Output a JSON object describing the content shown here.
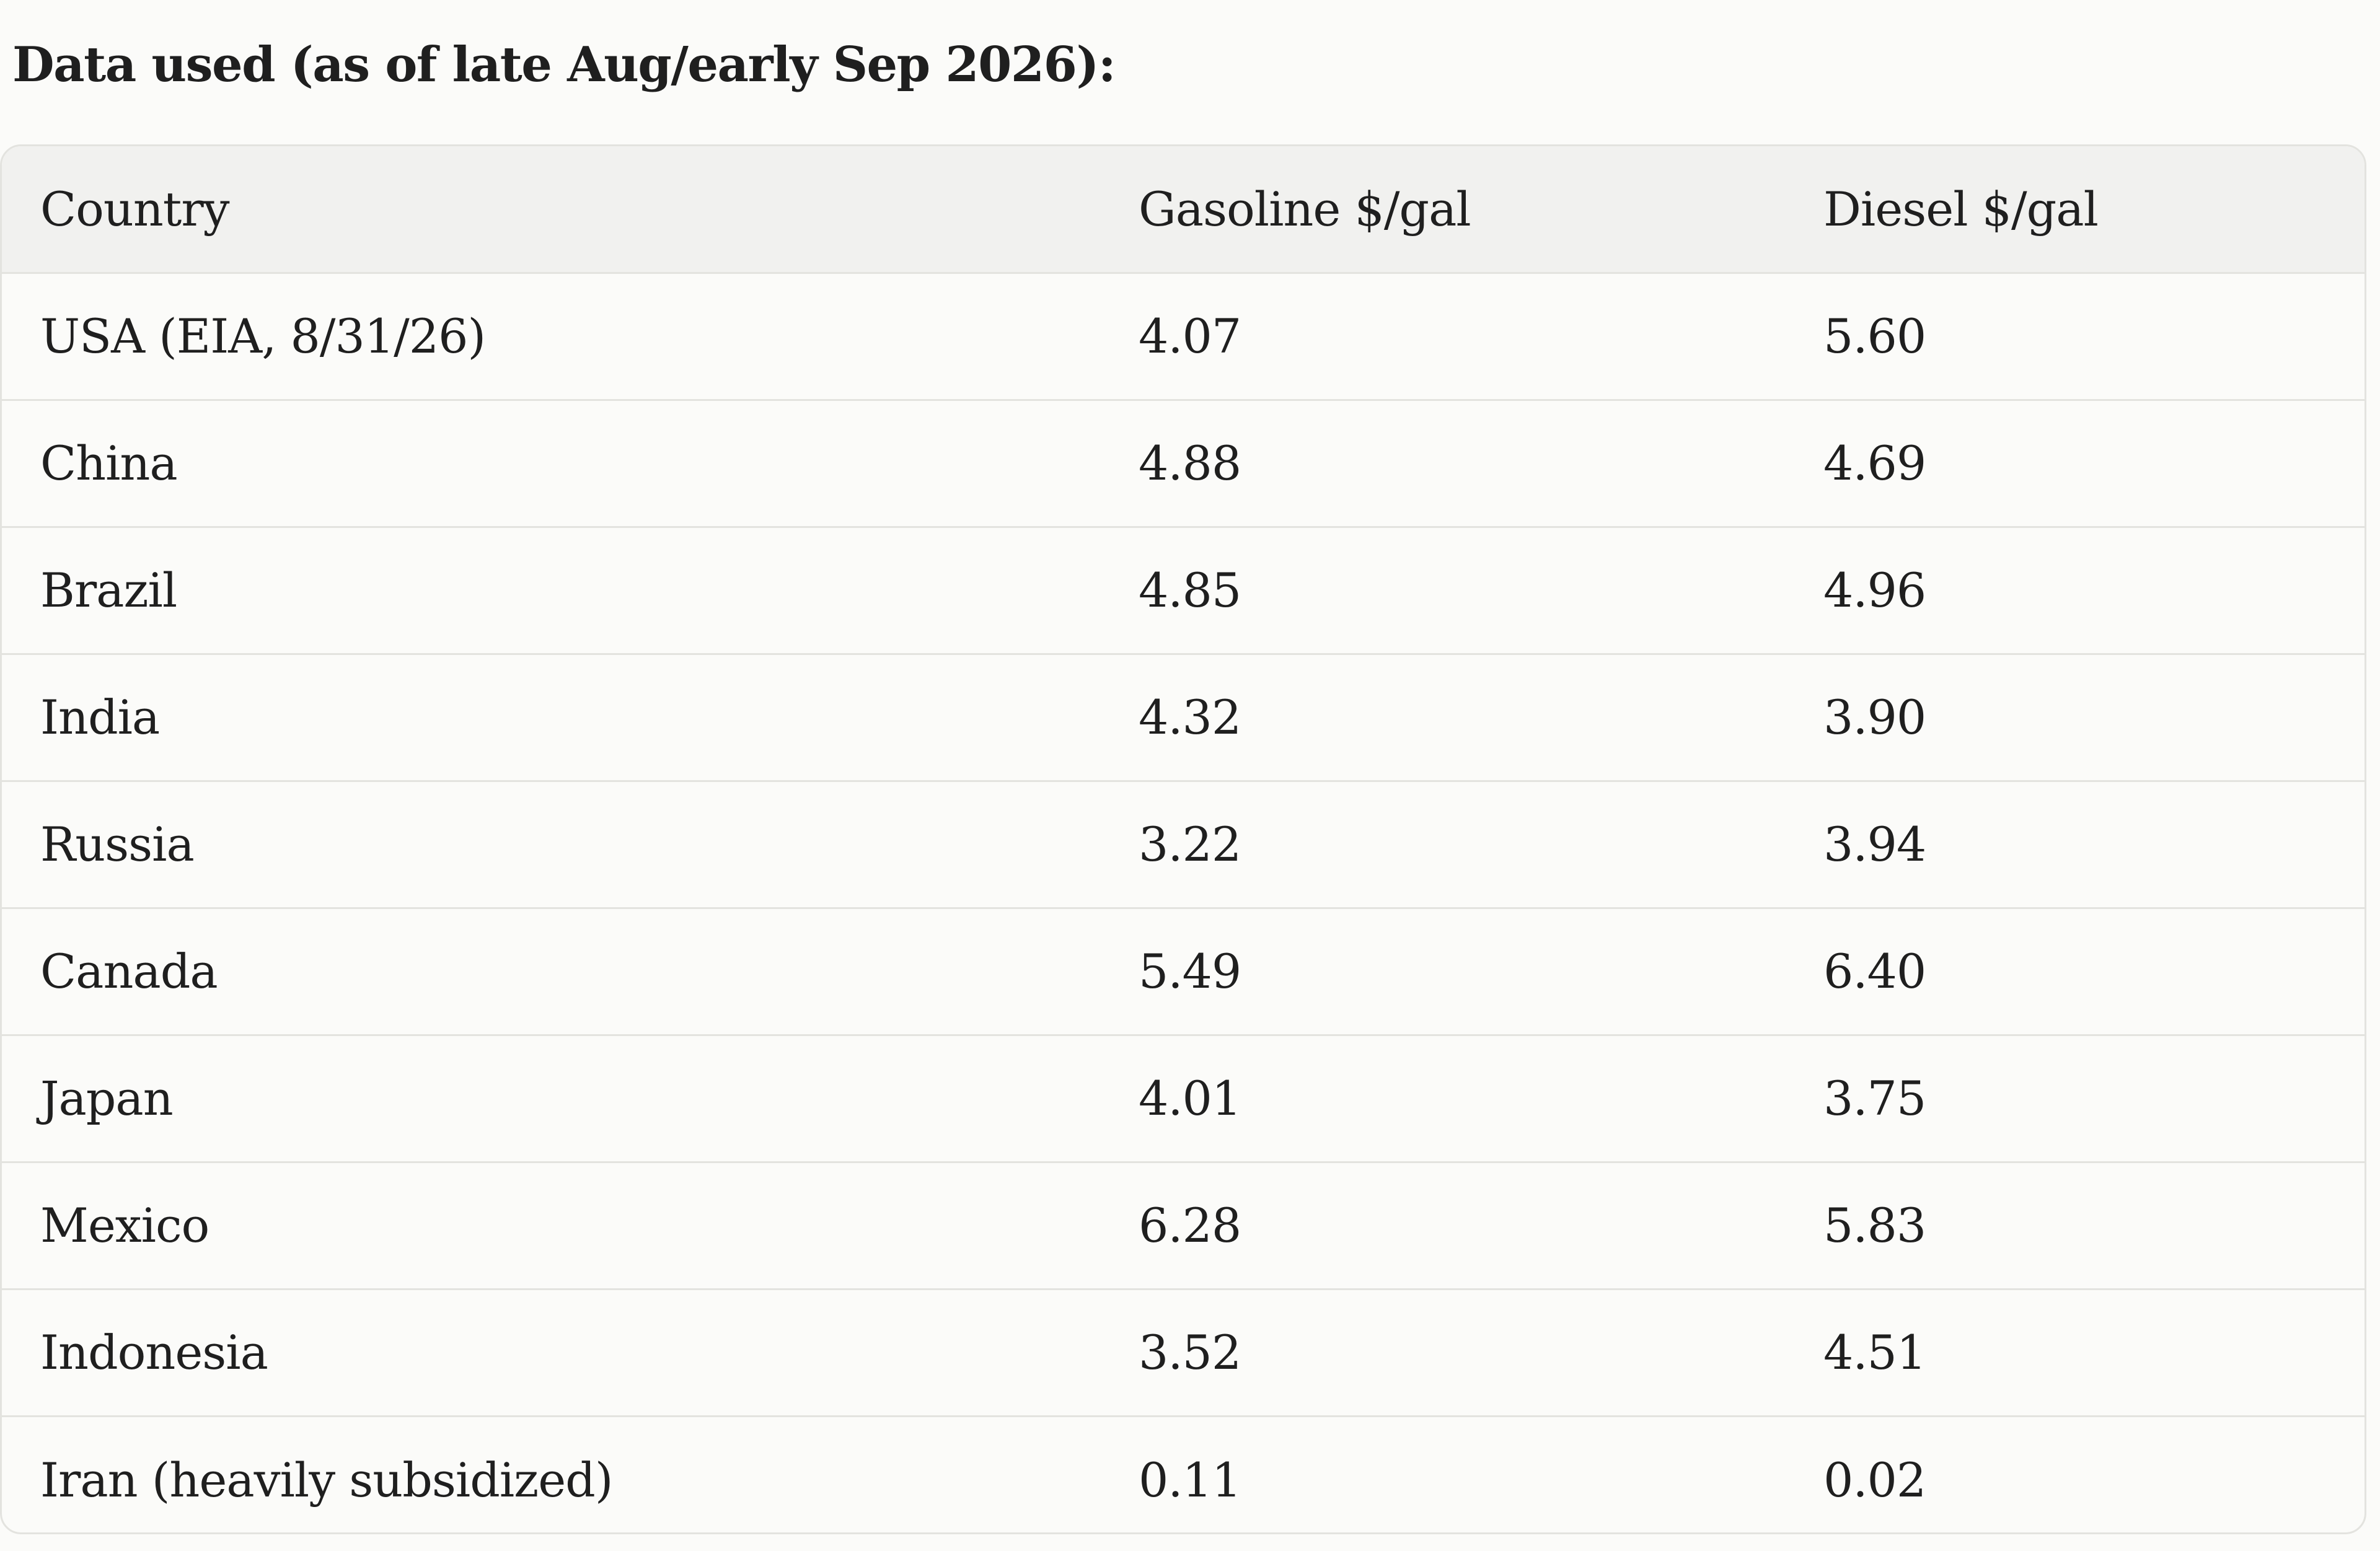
{
  "heading": "Data used (as of late Aug/early Sep 2026):",
  "table": {
    "columns": [
      "Country",
      "Gasoline $/gal",
      "Diesel $/gal"
    ],
    "rows": [
      [
        "USA (EIA, 8/31/26)",
        "4.07",
        "5.60"
      ],
      [
        "China",
        "4.88",
        "4.69"
      ],
      [
        "Brazil",
        "4.85",
        "4.96"
      ],
      [
        "India",
        "4.32",
        "3.90"
      ],
      [
        "Russia",
        "3.22",
        "3.94"
      ],
      [
        "Canada",
        "5.49",
        "6.40"
      ],
      [
        "Japan",
        "4.01",
        "3.75"
      ],
      [
        "Mexico",
        "6.28",
        "5.83"
      ],
      [
        "Indonesia",
        "3.52",
        "4.51"
      ],
      [
        "Iran (heavily subsidized)",
        "0.11",
        "0.02"
      ]
    ]
  }
}
